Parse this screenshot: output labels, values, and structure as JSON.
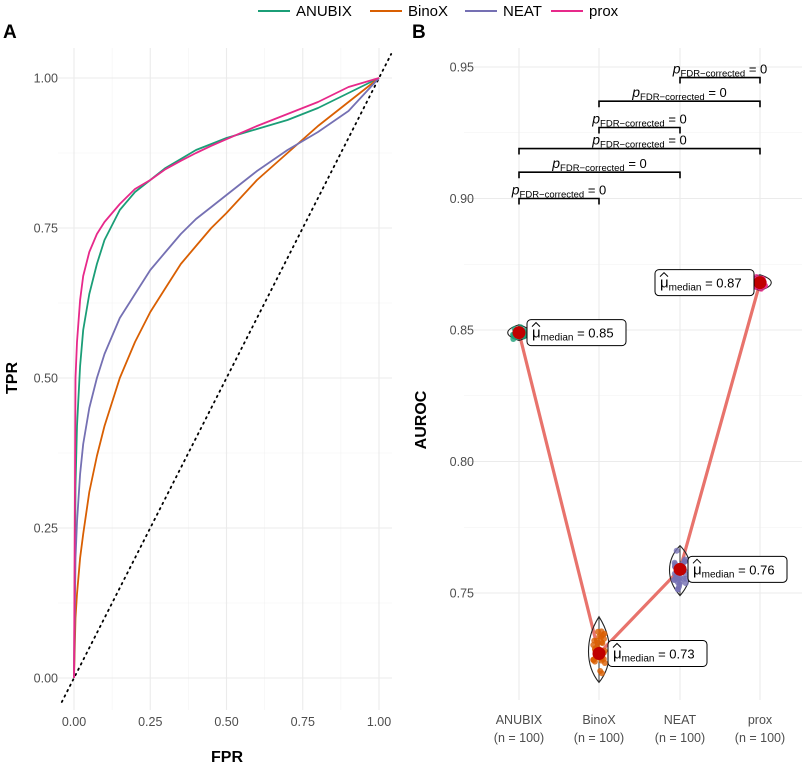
{
  "legend": {
    "items": [
      {
        "label": "ANUBIX",
        "color": "#1b9e77"
      },
      {
        "label": "BinoX",
        "color": "#d95f02"
      },
      {
        "label": "NEAT",
        "color": "#7570b3"
      },
      {
        "label": "prox",
        "color": "#e7298a"
      }
    ]
  },
  "chart_data": [
    {
      "panel": "A",
      "type": "line",
      "xlabel": "FPR",
      "ylabel": "TPR",
      "xlim": [
        0,
        1
      ],
      "ylim": [
        0,
        1
      ],
      "x_ticks": [
        "0.00",
        "0.25",
        "0.50",
        "0.75",
        "1.00"
      ],
      "y_ticks": [
        "0.00",
        "0.25",
        "0.50",
        "0.75",
        "1.00"
      ],
      "grid": true,
      "reference_line": "diagonal dotted y = x",
      "series": [
        {
          "name": "ANUBIX",
          "color": "#1b9e77",
          "x": [
            0,
            0.005,
            0.01,
            0.02,
            0.03,
            0.05,
            0.075,
            0.1,
            0.15,
            0.2,
            0.25,
            0.3,
            0.35,
            0.4,
            0.45,
            0.5,
            0.6,
            0.7,
            0.8,
            0.9,
            1.0
          ],
          "y": [
            0,
            0.32,
            0.42,
            0.52,
            0.58,
            0.64,
            0.69,
            0.73,
            0.78,
            0.81,
            0.83,
            0.85,
            0.865,
            0.88,
            0.89,
            0.9,
            0.915,
            0.93,
            0.95,
            0.975,
            1.0
          ]
        },
        {
          "name": "BinoX",
          "color": "#d95f02",
          "x": [
            0,
            0.005,
            0.01,
            0.02,
            0.03,
            0.05,
            0.075,
            0.1,
            0.15,
            0.2,
            0.25,
            0.3,
            0.35,
            0.4,
            0.45,
            0.5,
            0.6,
            0.7,
            0.8,
            0.9,
            1.0
          ],
          "y": [
            0,
            0.1,
            0.14,
            0.2,
            0.24,
            0.31,
            0.37,
            0.42,
            0.5,
            0.56,
            0.61,
            0.65,
            0.69,
            0.72,
            0.75,
            0.775,
            0.83,
            0.875,
            0.92,
            0.96,
            1.0
          ]
        },
        {
          "name": "NEAT",
          "color": "#7570b3",
          "x": [
            0,
            0.005,
            0.01,
            0.02,
            0.03,
            0.05,
            0.075,
            0.1,
            0.15,
            0.2,
            0.25,
            0.3,
            0.35,
            0.4,
            0.45,
            0.5,
            0.6,
            0.7,
            0.8,
            0.9,
            1.0
          ],
          "y": [
            0,
            0.2,
            0.26,
            0.34,
            0.39,
            0.45,
            0.5,
            0.54,
            0.6,
            0.64,
            0.68,
            0.71,
            0.74,
            0.765,
            0.785,
            0.805,
            0.845,
            0.88,
            0.91,
            0.945,
            1.0
          ]
        },
        {
          "name": "prox",
          "color": "#e7298a",
          "x": [
            0,
            0.005,
            0.01,
            0.02,
            0.03,
            0.05,
            0.075,
            0.1,
            0.15,
            0.2,
            0.25,
            0.3,
            0.35,
            0.4,
            0.45,
            0.5,
            0.6,
            0.7,
            0.8,
            0.9,
            1.0
          ],
          "y": [
            0,
            0.5,
            0.56,
            0.63,
            0.67,
            0.71,
            0.74,
            0.76,
            0.79,
            0.815,
            0.83,
            0.848,
            0.862,
            0.875,
            0.887,
            0.898,
            0.92,
            0.94,
            0.96,
            0.985,
            1.0
          ]
        }
      ]
    },
    {
      "panel": "B",
      "type": "scatter",
      "ylabel": "AUROC",
      "ylim": [
        0.712,
        0.955
      ],
      "y_ticks": [
        "0.75",
        "0.80",
        "0.85",
        "0.90",
        "0.95"
      ],
      "categories": [
        "ANUBIX",
        "BinoX",
        "NEAT",
        "prox"
      ],
      "category_n": [
        "(n = 100)",
        "(n = 100)",
        "(n = 100)",
        "(n = 100)"
      ],
      "colors": [
        "#1b9e77",
        "#d95f02",
        "#7570b3",
        "#e7298a"
      ],
      "medians": [
        0.849,
        0.727,
        0.759,
        0.868
      ],
      "spread": [
        [
          0.846,
          0.852
        ],
        [
          0.716,
          0.741
        ],
        [
          0.749,
          0.768
        ],
        [
          0.865,
          0.871
        ]
      ],
      "median_labels": [
        {
          "prefix": "μ",
          "sub": "median",
          "value": "= 0.85"
        },
        {
          "prefix": "μ",
          "sub": "median",
          "value": "= 0.73"
        },
        {
          "prefix": "μ",
          "sub": "median",
          "value": "= 0.76"
        },
        {
          "prefix": "μ",
          "sub": "median",
          "value": "= 0.87"
        }
      ],
      "connect_line_color": "#e8736c",
      "comparisons": [
        {
          "from": "ANUBIX",
          "to": "BinoX",
          "y": 0.9,
          "label_p": "p",
          "label_sub": "FDR−corrected",
          "label_val": "= 0"
        },
        {
          "from": "ANUBIX",
          "to": "NEAT",
          "y": 0.91,
          "label_p": "p",
          "label_sub": "FDR−corrected",
          "label_val": "= 0"
        },
        {
          "from": "ANUBIX",
          "to": "prox",
          "y": 0.919,
          "label_p": "p",
          "label_sub": "FDR−corrected",
          "label_val": "= 0"
        },
        {
          "from": "BinoX",
          "to": "NEAT",
          "y": 0.927,
          "label_p": "p",
          "label_sub": "FDR−corrected",
          "label_val": "= 0"
        },
        {
          "from": "BinoX",
          "to": "prox",
          "y": 0.937,
          "label_p": "p",
          "label_sub": "FDR−corrected",
          "label_val": "= 0"
        },
        {
          "from": "NEAT",
          "to": "prox",
          "y": 0.946,
          "label_p": "p",
          "label_sub": "FDR−corrected",
          "label_val": "= 0"
        }
      ]
    }
  ],
  "panels": {
    "a_label": "A",
    "b_label": "B"
  }
}
